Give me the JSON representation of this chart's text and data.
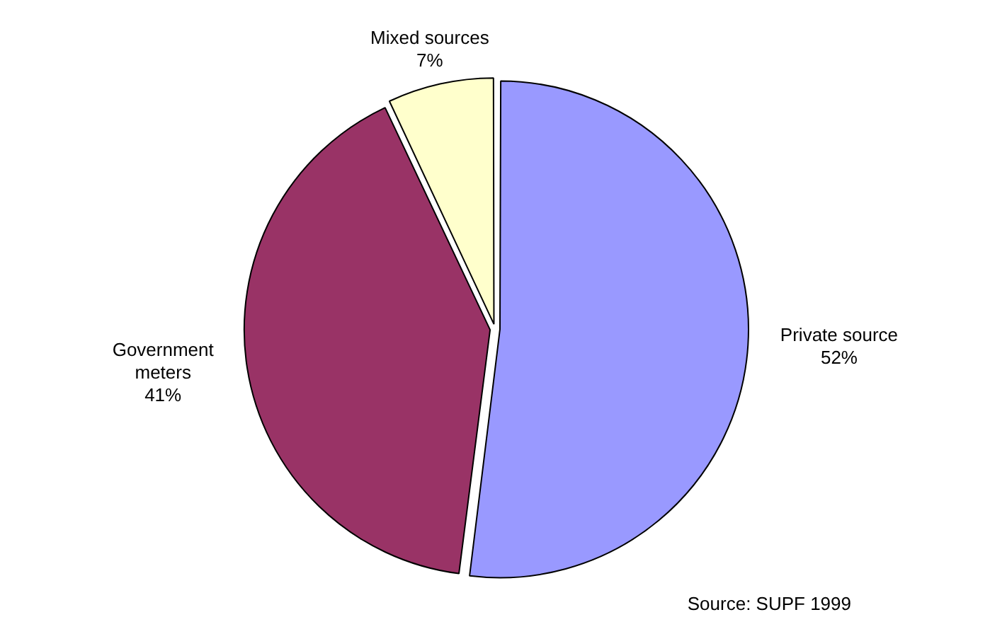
{
  "chart_data": {
    "type": "pie",
    "categories": [
      "Private source",
      "Government meters",
      "Mixed sources"
    ],
    "values": [
      52,
      41,
      7
    ],
    "colors": [
      "#9999ff",
      "#993366",
      "#ffffcc"
    ],
    "value_labels": [
      "52%",
      "41%",
      "7%"
    ],
    "legend": false,
    "annotations": [
      "Source: SUPF 1999"
    ]
  }
}
